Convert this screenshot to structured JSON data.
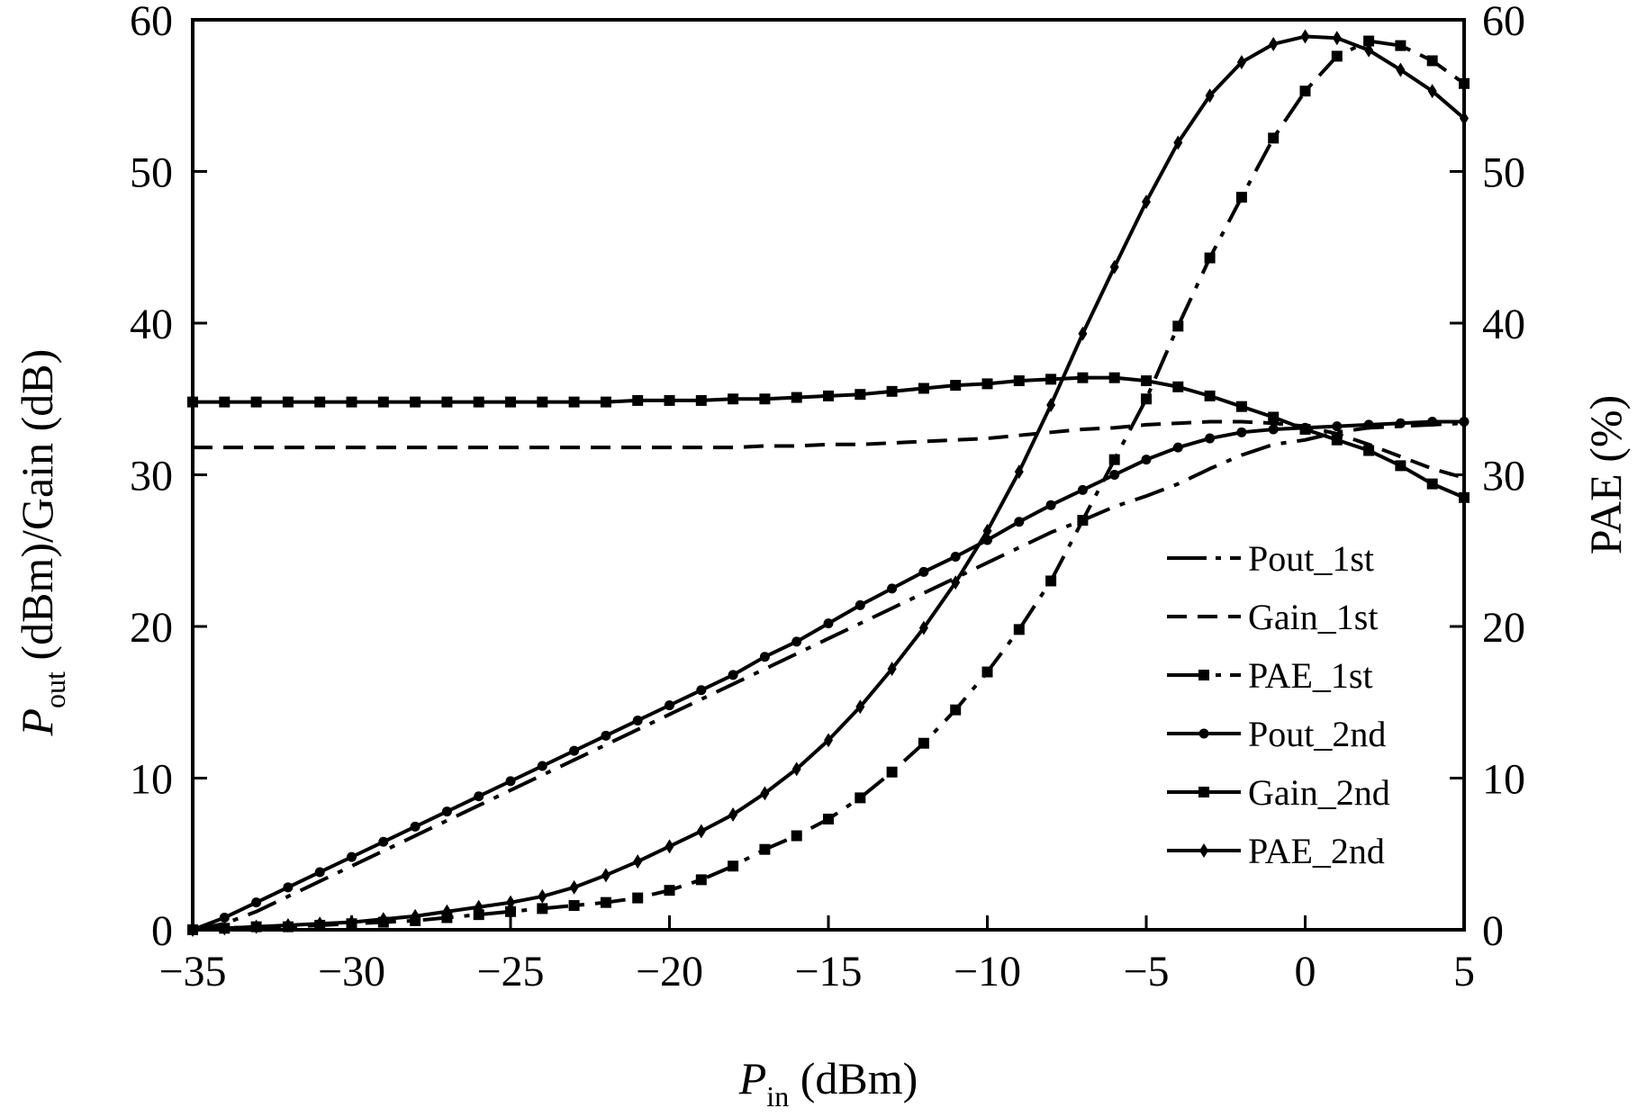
{
  "chart_data": {
    "type": "line",
    "x_axis": {
      "label_main": "P",
      "label_sub": "in",
      "label_unit": " (dBm)",
      "min": -35,
      "max": 5,
      "ticks": [
        -35,
        -30,
        -25,
        -20,
        -15,
        -10,
        -5,
        0,
        5
      ],
      "tick_labels": [
        "−35",
        "−30",
        "−25",
        "−20",
        "−15",
        "−10",
        "−5",
        "0",
        "5"
      ]
    },
    "y_left": {
      "label_main": "P",
      "label_sub": "out",
      "label_unit": " (dBm)/Gain (dB)",
      "min": 0,
      "max": 60,
      "ticks": [
        0,
        10,
        20,
        30,
        40,
        50,
        60
      ],
      "tick_labels": [
        "0",
        "10",
        "20",
        "30",
        "40",
        "50",
        "60"
      ]
    },
    "y_right": {
      "label": "PAE (%)",
      "min": 0,
      "max": 60,
      "ticks": [
        0,
        10,
        20,
        30,
        40,
        50,
        60
      ],
      "tick_labels": [
        "0",
        "10",
        "20",
        "30",
        "40",
        "50",
        "60"
      ]
    },
    "grid": false,
    "legend_position": "bottom-right",
    "x": [
      -35,
      -34,
      -33,
      -32,
      -31,
      -30,
      -29,
      -28,
      -27,
      -26,
      -25,
      -24,
      -23,
      -22,
      -21,
      -20,
      -19,
      -18,
      -17,
      -16,
      -15,
      -14,
      -13,
      -12,
      -11,
      -10,
      -9,
      -8,
      -7,
      -6,
      -5,
      -4,
      -3,
      -2,
      -1,
      0,
      1,
      2,
      3,
      4,
      5
    ],
    "series": [
      {
        "name": "Pout_1st",
        "axis": "left",
        "dash": "dashdot",
        "marker": "none",
        "color": "#000000",
        "values": [
          0,
          0.4,
          1.2,
          2.2,
          3.2,
          4.2,
          5.2,
          6.2,
          7.2,
          8.2,
          9.2,
          10.2,
          11.2,
          12.2,
          13.2,
          14.2,
          15.2,
          16.2,
          17.2,
          18.2,
          19.2,
          20.2,
          21.2,
          22.2,
          23.2,
          24.2,
          25.2,
          26.2,
          27.0,
          27.9,
          28.6,
          29.4,
          30.4,
          31.3,
          32.0,
          32.3,
          32.8,
          33.1,
          33.2,
          33.3,
          33.4
        ]
      },
      {
        "name": "Gain_1st",
        "axis": "left",
        "dash": "dashed",
        "marker": "none",
        "color": "#000000",
        "values": [
          31.8,
          31.8,
          31.8,
          31.8,
          31.8,
          31.8,
          31.8,
          31.8,
          31.8,
          31.8,
          31.8,
          31.8,
          31.8,
          31.8,
          31.8,
          31.8,
          31.8,
          31.8,
          31.9,
          31.9,
          32.0,
          32.0,
          32.1,
          32.2,
          32.3,
          32.4,
          32.6,
          32.8,
          33.0,
          33.1,
          33.3,
          33.4,
          33.5,
          33.5,
          33.4,
          33.2,
          32.7,
          32.0,
          31.2,
          30.4,
          29.8
        ]
      },
      {
        "name": "PAE_1st",
        "axis": "right",
        "dash": "dashdot",
        "marker": "square",
        "color": "#000000",
        "values": [
          0,
          0.1,
          0.2,
          0.2,
          0.3,
          0.4,
          0.5,
          0.6,
          0.8,
          1.0,
          1.2,
          1.4,
          1.6,
          1.8,
          2.1,
          2.6,
          3.3,
          4.2,
          5.3,
          6.2,
          7.3,
          8.7,
          10.4,
          12.3,
          14.5,
          17.0,
          19.8,
          23.0,
          27.0,
          31.0,
          35.0,
          39.8,
          44.3,
          48.3,
          52.2,
          55.3,
          57.6,
          58.6,
          58.3,
          57.3,
          55.8
        ]
      },
      {
        "name": "Pout_2nd",
        "axis": "left",
        "dash": "solid",
        "marker": "circle",
        "color": "#000000",
        "values": [
          0,
          0.8,
          1.8,
          2.8,
          3.8,
          4.8,
          5.8,
          6.8,
          7.8,
          8.8,
          9.8,
          10.8,
          11.8,
          12.8,
          13.8,
          14.8,
          15.8,
          16.8,
          18.0,
          19.0,
          20.2,
          21.4,
          22.5,
          23.6,
          24.6,
          25.7,
          26.9,
          28.0,
          29.0,
          30.0,
          31.0,
          31.8,
          32.4,
          32.8,
          33.0,
          33.1,
          33.2,
          33.3,
          33.4,
          33.5,
          33.5
        ]
      },
      {
        "name": "Gain_2nd",
        "axis": "left",
        "dash": "solid",
        "marker": "square",
        "color": "#000000",
        "values": [
          34.8,
          34.8,
          34.8,
          34.8,
          34.8,
          34.8,
          34.8,
          34.8,
          34.8,
          34.8,
          34.8,
          34.8,
          34.8,
          34.8,
          34.9,
          34.9,
          34.9,
          35.0,
          35.0,
          35.1,
          35.2,
          35.3,
          35.5,
          35.7,
          35.9,
          36.0,
          36.2,
          36.3,
          36.4,
          36.4,
          36.2,
          35.8,
          35.2,
          34.5,
          33.8,
          33.0,
          32.3,
          31.6,
          30.6,
          29.4,
          28.5
        ]
      },
      {
        "name": "PAE_2nd",
        "axis": "right",
        "dash": "solid",
        "marker": "diamond",
        "color": "#000000",
        "values": [
          0,
          0.1,
          0.2,
          0.3,
          0.4,
          0.5,
          0.7,
          0.9,
          1.2,
          1.5,
          1.8,
          2.2,
          2.8,
          3.6,
          4.5,
          5.5,
          6.5,
          7.6,
          9.0,
          10.6,
          12.5,
          14.7,
          17.2,
          19.9,
          22.9,
          26.3,
          30.2,
          34.6,
          39.3,
          43.7,
          48.0,
          51.9,
          55.0,
          57.2,
          58.4,
          58.9,
          58.8,
          58.0,
          56.7,
          55.3,
          53.5
        ]
      }
    ]
  }
}
